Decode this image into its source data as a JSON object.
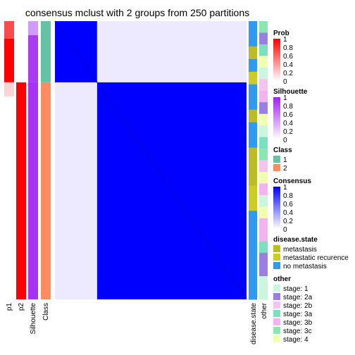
{
  "chart_data": {
    "type": "heatmap",
    "title": "consensus mclust with 2 groups from 250 partitions",
    "annotation_columns": [
      "p1",
      "p2",
      "Silhouette",
      "Class"
    ],
    "row_annotation_columns": [
      "disease.state",
      "other"
    ],
    "groups": [
      {
        "class": "1",
        "n": 20,
        "p1": 1.0,
        "p2": 0.0,
        "silhouette": 0.88
      },
      {
        "class": "2",
        "n": 80,
        "p1": 0.0,
        "p2": 1.0,
        "silhouette": 0.92
      }
    ],
    "consensus_summary": {
      "within_class_1": 1.0,
      "within_class_2": 1.0,
      "between_classes": 0.0
    },
    "legends": [
      {
        "title": "Prob",
        "type": "gradient",
        "ticks": [
          "1",
          "0.8",
          "0.6",
          "0.4",
          "0.2",
          "0"
        ],
        "colors": [
          "#ff0000",
          "#ffffff"
        ]
      },
      {
        "title": "Silhouette",
        "type": "gradient",
        "ticks": [
          "1",
          "0.8",
          "0.6",
          "0.4",
          "0.2",
          "0"
        ],
        "colors": [
          "#a020f0",
          "#ffffff"
        ]
      },
      {
        "title": "Class",
        "type": "discrete",
        "items": [
          {
            "label": "1",
            "color": "#66c2a5"
          },
          {
            "label": "2",
            "color": "#fc8d62"
          }
        ]
      },
      {
        "title": "Consensus",
        "type": "gradient",
        "ticks": [
          "1",
          "0.8",
          "0.6",
          "0.4",
          "0.2",
          "0"
        ],
        "colors": [
          "#0000ff",
          "#ffffff"
        ]
      },
      {
        "title": "disease.state",
        "type": "discrete",
        "items": [
          {
            "label": "metastasis",
            "color": "#bcbd22"
          },
          {
            "label": "metastatic recurence",
            "color": "#cccc22"
          },
          {
            "label": "no metastasis",
            "color": "#3399ee"
          }
        ]
      },
      {
        "title": "other",
        "type": "discrete",
        "items": [
          {
            "label": "stage: 1",
            "color": "#ccf5e0"
          },
          {
            "label": "stage: 2a",
            "color": "#9a7ee0"
          },
          {
            "label": "stage: 2b",
            "color": "#f5c3f0"
          },
          {
            "label": "stage: 3a",
            "color": "#7ae0c0"
          },
          {
            "label": "stage: 3b",
            "color": "#f2b3ee"
          },
          {
            "label": "stage: 3c",
            "color": "#88e8b0"
          },
          {
            "label": "stage: 4",
            "color": "#f0ffb0"
          }
        ]
      }
    ]
  }
}
